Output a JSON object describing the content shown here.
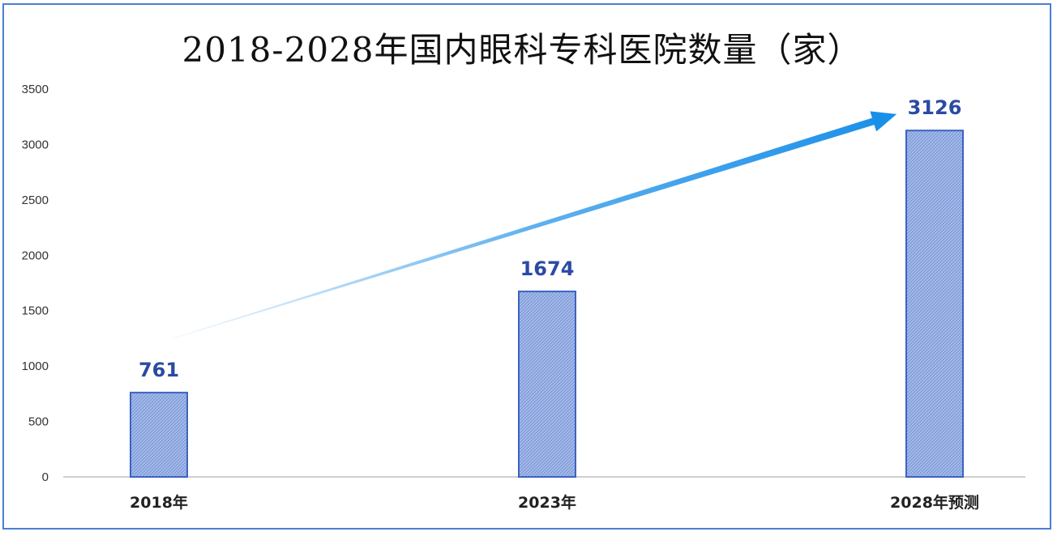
{
  "chart_data": {
    "type": "bar",
    "title": "2018-2028年国内眼科专科医院数量（家）",
    "categories": [
      "2018年",
      "2023年",
      "2028年预测"
    ],
    "values": [
      761,
      1674,
      3126
    ],
    "data_labels": [
      "761",
      "1674",
      "3126"
    ],
    "ylim": [
      0,
      3500
    ],
    "yticks": [
      0,
      500,
      1000,
      1500,
      2000,
      2500,
      3000,
      3500
    ],
    "grid": false,
    "legend": "none",
    "trend_arrow": true,
    "colors": {
      "bar_fill": "#a9bde8",
      "bar_hatch": "#6f8fd6",
      "bar_stroke": "#3b63c4",
      "label": "#2c4aa3",
      "arrow": "#1a8fe8",
      "frame": "#4a7fd4"
    }
  }
}
